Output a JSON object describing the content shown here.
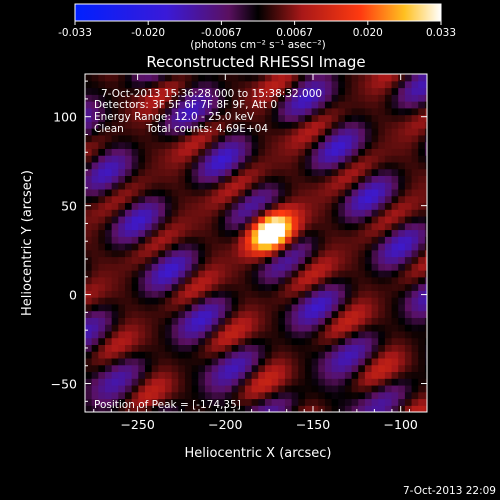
{
  "chart_data": {
    "type": "heatmap",
    "title": "Reconstructed RHESSI Image",
    "xlabel": "Heliocentric X (arcsec)",
    "ylabel": "Heliocentric Y (arcsec)",
    "xlim": [
      -280,
      -85
    ],
    "ylim": [
      -66,
      124
    ],
    "xticks": [
      -250,
      -200,
      -150,
      -100
    ],
    "yticks": [
      -50,
      0,
      50,
      100
    ],
    "colorbar": {
      "range": [
        -0.033,
        0.033
      ],
      "ticks": [
        "-0.033",
        "-0.020",
        "-0.0067",
        "0.0067",
        "0.020",
        "0.033"
      ],
      "units": "(photons cm⁻² s⁻¹ asec⁻²)"
    },
    "annotations": {
      "time_range": "7-Oct-2013 15:36:28.000 to 15:38:32.000",
      "detectors": "Detectors: 3F 5F 6F 7F 8F 9F, Att 0",
      "energy": "Energy Range: 12.0 - 25.0 keV",
      "method": "Clean",
      "counts": "Total counts: 4.69E+04",
      "peak": "Position of Peak = [-174,35]"
    },
    "peak": {
      "x": -174,
      "y": 35
    },
    "timestamp": "7-Oct-2013 22:09"
  }
}
